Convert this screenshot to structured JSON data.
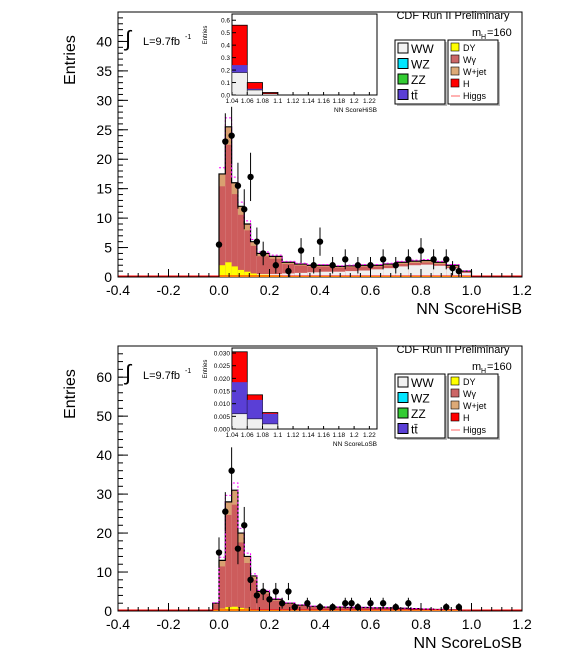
{
  "chart_data": [
    {
      "type": "bar",
      "id": "top",
      "header": "CDF Run II Preliminary",
      "ylabel": "Entries",
      "xlabel": "NN ScoreHiSB",
      "lumi_text": "L=9.7fb",
      "lumi_sup": "-1",
      "mass_label": "m",
      "mass_sub": "H",
      "mass_value": "=160",
      "xlim": [
        -0.4,
        1.2
      ],
      "ylim": [
        0,
        45
      ],
      "xticks": [
        "-0.4",
        "-0.2",
        "0.0",
        "0.2",
        "0.4",
        "0.6",
        "0.8",
        "1.0",
        "1.2"
      ],
      "yticks": [
        "0",
        "5",
        "10",
        "15",
        "20",
        "25",
        "30",
        "35",
        "40"
      ],
      "legend_left": [
        {
          "label": "WW",
          "color": "#f2f2f2"
        },
        {
          "label": "WZ",
          "color": "#00e6ff"
        },
        {
          "label": "ZZ",
          "color": "#33cc33"
        },
        {
          "label": "tt̄",
          "color": "#5a3fd6"
        }
      ],
      "legend_right": [
        {
          "label": "DY",
          "color": "#ffff00"
        },
        {
          "label": "Wγ",
          "color": "#cc6666"
        },
        {
          "label": "W+jet",
          "color": "#ddaa77"
        },
        {
          "label": "H",
          "color": "#ff0000"
        },
        {
          "label": "Higgs",
          "color": "#ff6666"
        }
      ],
      "bin_edges": [
        0.0,
        0.025,
        0.05,
        0.075,
        0.1,
        0.125,
        0.15,
        0.2,
        0.25,
        0.3,
        0.35,
        0.4,
        0.45,
        0.5,
        0.55,
        0.6,
        0.65,
        0.7,
        0.75,
        0.8,
        0.85,
        0.9,
        0.95,
        1.0
      ],
      "stack_total": [
        17.5,
        25.5,
        16,
        12,
        9,
        6,
        4,
        3.5,
        2.5,
        2.2,
        2,
        2,
        1.8,
        1.9,
        2,
        2,
        2.2,
        2.5,
        2.7,
        2.8,
        2.5,
        2,
        1
      ],
      "dy_component": [
        2,
        2.5,
        1.8,
        1.2,
        0.9,
        0.6,
        0.4,
        0.3,
        0.2,
        0.1,
        0.1,
        0.1,
        0.1,
        0.1,
        0.1,
        0.1,
        0.1,
        0.1,
        0.1,
        0.1,
        0.1,
        0.1,
        0.1
      ],
      "ww_component": [
        0.2,
        0.3,
        0.3,
        0.3,
        0.4,
        0.4,
        0.5,
        0.5,
        0.6,
        0.7,
        0.8,
        0.9,
        0.9,
        1.0,
        1.1,
        1.3,
        1.5,
        1.8,
        2.0,
        2.1,
        1.9,
        1.5,
        0.7
      ],
      "data_points": [
        {
          "x": 0.0,
          "y": 5.5,
          "err": 2.3
        },
        {
          "x": 0.025,
          "y": 23,
          "err": 4.8
        },
        {
          "x": 0.05,
          "y": 24,
          "err": 4.9
        },
        {
          "x": 0.075,
          "y": 15.5,
          "err": 3.9
        },
        {
          "x": 0.1,
          "y": 11.5,
          "err": 3.4
        },
        {
          "x": 0.125,
          "y": 17,
          "err": 4.1
        },
        {
          "x": 0.15,
          "y": 6,
          "err": 2.4
        },
        {
          "x": 0.175,
          "y": 4,
          "err": 2.0
        },
        {
          "x": 0.225,
          "y": 2,
          "err": 1.4
        },
        {
          "x": 0.275,
          "y": 1,
          "err": 1.0
        },
        {
          "x": 0.325,
          "y": 4.5,
          "err": 2.1
        },
        {
          "x": 0.375,
          "y": 2,
          "err": 1.4
        },
        {
          "x": 0.4,
          "y": 6,
          "err": 2.4
        },
        {
          "x": 0.45,
          "y": 2,
          "err": 1.4
        },
        {
          "x": 0.5,
          "y": 3,
          "err": 1.7
        },
        {
          "x": 0.55,
          "y": 2,
          "err": 1.4
        },
        {
          "x": 0.6,
          "y": 2,
          "err": 1.4
        },
        {
          "x": 0.65,
          "y": 3,
          "err": 1.7
        },
        {
          "x": 0.7,
          "y": 2,
          "err": 1.4
        },
        {
          "x": 0.75,
          "y": 3,
          "err": 1.7
        },
        {
          "x": 0.8,
          "y": 4.5,
          "err": 2.1
        },
        {
          "x": 0.85,
          "y": 3,
          "err": 1.7
        },
        {
          "x": 0.9,
          "y": 3,
          "err": 1.7
        },
        {
          "x": 0.925,
          "y": 1.5,
          "err": 1.2
        },
        {
          "x": 0.95,
          "y": 1,
          "err": 1.0
        }
      ],
      "inset": {
        "ylabel": "Entries",
        "xlabel": "NN ScoreHiSB",
        "xticks": [
          "1.04",
          "1.06",
          "1.08",
          "1.1",
          "1.12",
          "1.14",
          "1.16",
          "1.18",
          "1.2",
          "1.22"
        ],
        "yticks": [
          "0.0",
          "0.1",
          "0.2",
          "0.3",
          "0.4",
          "0.5",
          "0.6"
        ],
        "ylim": [
          0,
          0.65
        ],
        "bins": [
          {
            "x0": 1.04,
            "x1": 1.06,
            "total": 0.56,
            "h": 0.32,
            "other": 0.24,
            "ww": 0.18
          },
          {
            "x0": 1.06,
            "x1": 1.08,
            "total": 0.1,
            "h": 0.05,
            "other": 0.05,
            "ww": 0.04
          },
          {
            "x0": 1.08,
            "x1": 1.1,
            "total": 0.02,
            "h": 0.01,
            "other": 0.01,
            "ww": 0.01
          }
        ]
      }
    },
    {
      "type": "bar",
      "id": "bottom",
      "header": "CDF Run II Preliminary",
      "ylabel": "Entries",
      "xlabel": "NN ScoreLoSB",
      "lumi_text": "L=9.7fb",
      "lumi_sup": "-1",
      "mass_label": "m",
      "mass_sub": "H",
      "mass_value": "=160",
      "xlim": [
        -0.4,
        1.2
      ],
      "ylim": [
        0,
        68
      ],
      "xticks": [
        "-0.4",
        "-0.2",
        "0.0",
        "0.2",
        "0.4",
        "0.6",
        "0.8",
        "1.0",
        "1.2"
      ],
      "yticks": [
        "0",
        "10",
        "20",
        "30",
        "40",
        "50",
        "60"
      ],
      "legend_left": [
        {
          "label": "WW",
          "color": "#f2f2f2"
        },
        {
          "label": "WZ",
          "color": "#00e6ff"
        },
        {
          "label": "ZZ",
          "color": "#33cc33"
        },
        {
          "label": "tt̄",
          "color": "#5a3fd6"
        }
      ],
      "legend_right": [
        {
          "label": "DY",
          "color": "#ffff00"
        },
        {
          "label": "Wγ",
          "color": "#cc6666"
        },
        {
          "label": "W+jet",
          "color": "#ddaa77"
        },
        {
          "label": "H",
          "color": "#ff0000"
        },
        {
          "label": "Higgs",
          "color": "#ff6666"
        }
      ],
      "bin_edges": [
        -0.025,
        0.0,
        0.025,
        0.05,
        0.075,
        0.1,
        0.125,
        0.15,
        0.2,
        0.25,
        0.3,
        0.35,
        0.4,
        0.45,
        0.5,
        0.55,
        0.6,
        0.65,
        0.7,
        0.75,
        0.8,
        0.85,
        0.9,
        0.95,
        1.0
      ],
      "stack_total": [
        2,
        13,
        28,
        31,
        20,
        14,
        9,
        5,
        3,
        2,
        1.5,
        1.2,
        1,
        1,
        0.9,
        0.9,
        0.8,
        0.8,
        0.7,
        0.6,
        0.5,
        0.4,
        0.3,
        0.2
      ],
      "dy_component": [
        0.3,
        0.6,
        1,
        1.1,
        0.8,
        0.6,
        0.4,
        0.3,
        0.2,
        0.1,
        0.1,
        0.1,
        0.1,
        0.1,
        0.1,
        0.1,
        0.1,
        0.1,
        0.1,
        0.1,
        0.1,
        0.1,
        0.1,
        0.1
      ],
      "ww_component": [
        0.1,
        0.2,
        0.3,
        0.3,
        0.3,
        0.3,
        0.3,
        0.3,
        0.3,
        0.3,
        0.3,
        0.3,
        0.3,
        0.3,
        0.3,
        0.3,
        0.3,
        0.3,
        0.3,
        0.2,
        0.2,
        0.2,
        0.1,
        0.1
      ],
      "data_points": [
        {
          "x": 0.0,
          "y": 15,
          "err": 3.9
        },
        {
          "x": 0.025,
          "y": 25.5,
          "err": 5.0
        },
        {
          "x": 0.05,
          "y": 36,
          "err": 6.0
        },
        {
          "x": 0.075,
          "y": 16,
          "err": 4.0
        },
        {
          "x": 0.1,
          "y": 22,
          "err": 4.7
        },
        {
          "x": 0.125,
          "y": 8,
          "err": 2.8
        },
        {
          "x": 0.15,
          "y": 4,
          "err": 2.0
        },
        {
          "x": 0.175,
          "y": 5,
          "err": 2.2
        },
        {
          "x": 0.2,
          "y": 3,
          "err": 1.7
        },
        {
          "x": 0.225,
          "y": 5,
          "err": 2.2
        },
        {
          "x": 0.25,
          "y": 2,
          "err": 1.4
        },
        {
          "x": 0.275,
          "y": 5,
          "err": 2.2
        },
        {
          "x": 0.3,
          "y": 1,
          "err": 1.0
        },
        {
          "x": 0.35,
          "y": 2,
          "err": 1.4
        },
        {
          "x": 0.4,
          "y": 1,
          "err": 1.0
        },
        {
          "x": 0.45,
          "y": 1,
          "err": 1.0
        },
        {
          "x": 0.5,
          "y": 2,
          "err": 1.4
        },
        {
          "x": 0.525,
          "y": 2,
          "err": 1.4
        },
        {
          "x": 0.55,
          "y": 1,
          "err": 1.0
        },
        {
          "x": 0.6,
          "y": 2,
          "err": 1.4
        },
        {
          "x": 0.65,
          "y": 2,
          "err": 1.4
        },
        {
          "x": 0.7,
          "y": 1,
          "err": 1.0
        },
        {
          "x": 0.75,
          "y": 2,
          "err": 1.4
        },
        {
          "x": 0.9,
          "y": 1,
          "err": 1.0
        },
        {
          "x": 0.95,
          "y": 1,
          "err": 1.0
        }
      ],
      "inset": {
        "ylabel": "Entries",
        "xlabel": "NN ScoreLoSB",
        "xticks": [
          "1.04",
          "1.06",
          "1.08",
          "1.1",
          "1.12",
          "1.14",
          "1.16",
          "1.18",
          "1.2",
          "1.22"
        ],
        "yticks": [
          "0.000",
          "0.005",
          "0.010",
          "0.015",
          "0.020",
          "0.025",
          "0.030"
        ],
        "ylim": [
          0,
          0.032
        ],
        "bins": [
          {
            "x0": 1.04,
            "x1": 1.06,
            "total": 0.0305,
            "h": 0.012,
            "other": 0.0185,
            "ww": 0.006
          },
          {
            "x0": 1.06,
            "x1": 1.08,
            "total": 0.0135,
            "h": 0.002,
            "other": 0.0115,
            "ww": 0.004
          },
          {
            "x0": 1.08,
            "x1": 1.1,
            "total": 0.0065,
            "h": 0.0005,
            "other": 0.006,
            "ww": 0.002
          }
        ]
      }
    }
  ]
}
